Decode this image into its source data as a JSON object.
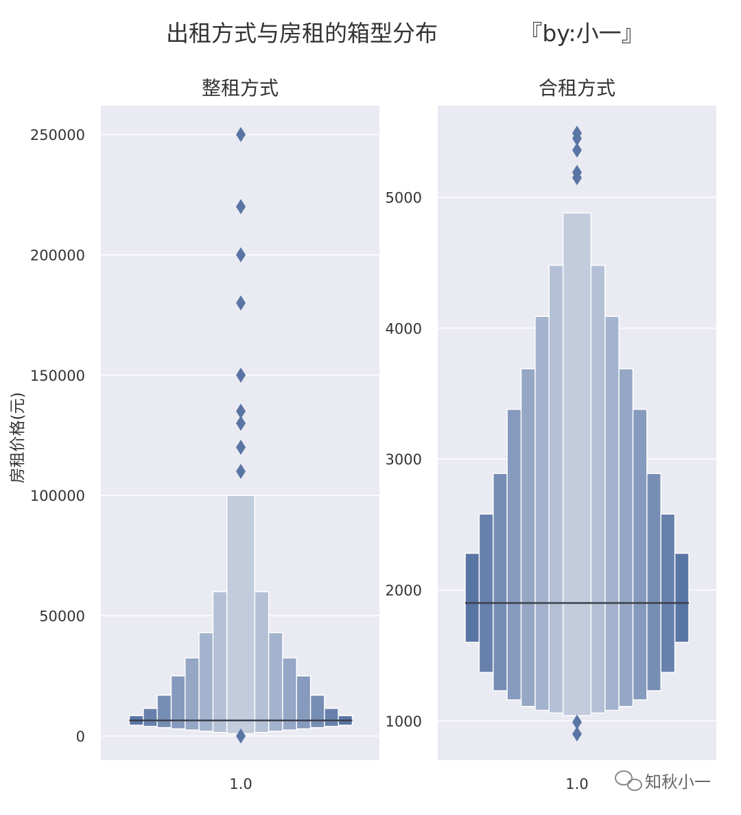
{
  "title": "出租方式与房租的箱型分布",
  "byline": "『by:小一』",
  "watermark": "知秋小一",
  "colors": {
    "panel_bg": "#eaeaf2",
    "grid": "#ffffff",
    "box": "#5975a4",
    "median": "#3b3f4a",
    "outlier": "#5975a4"
  },
  "chart_data": [
    {
      "type": "boxen",
      "subplot_title": "整租方式",
      "ylabel": "房租价格(元)",
      "xlabel": "",
      "categories": [
        "1.0"
      ],
      "ylim": [
        -10000,
        262000
      ],
      "yticks": [
        0,
        50000,
        100000,
        150000,
        200000,
        250000
      ],
      "median": 6500,
      "letter_values": [
        {
          "low": 4500,
          "high": 8500
        },
        {
          "low": 4000,
          "high": 11500
        },
        {
          "low": 3500,
          "high": 17000
        },
        {
          "low": 3000,
          "high": 25000
        },
        {
          "low": 2500,
          "high": 32500
        },
        {
          "low": 2000,
          "high": 43000
        },
        {
          "low": 1500,
          "high": 60000
        },
        {
          "low": 1000,
          "high": 100000
        }
      ],
      "outliers": [
        250000,
        220000,
        200000,
        180000,
        150000,
        135000,
        130000,
        120000,
        110000,
        0
      ]
    },
    {
      "type": "boxen",
      "subplot_title": "合租方式",
      "ylabel": "",
      "xlabel": "",
      "categories": [
        "1.0"
      ],
      "ylim": [
        700,
        5700
      ],
      "yticks": [
        1000,
        2000,
        3000,
        4000,
        5000
      ],
      "median": 1900,
      "letter_values": [
        {
          "low": 1600,
          "high": 2280
        },
        {
          "low": 1370,
          "high": 2580
        },
        {
          "low": 1230,
          "high": 2890
        },
        {
          "low": 1160,
          "high": 3380
        },
        {
          "low": 1110,
          "high": 3690
        },
        {
          "low": 1080,
          "high": 4090
        },
        {
          "low": 1060,
          "high": 4480
        },
        {
          "low": 1040,
          "high": 4880
        }
      ],
      "outliers": [
        5490,
        5450,
        5360,
        5190,
        5150,
        990,
        900
      ]
    }
  ]
}
